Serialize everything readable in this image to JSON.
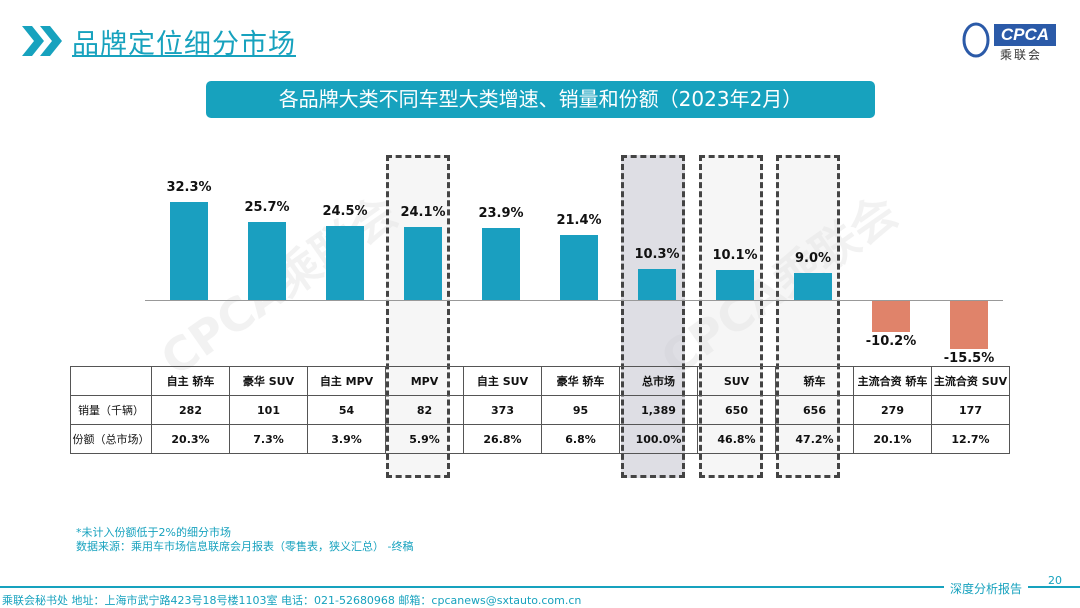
{
  "header": {
    "title": "品牌定位细分市场",
    "chart_title": "各品牌大类不同车型大类增速、销量和份额（2023年2月）"
  },
  "logo": {
    "text": "CPCA",
    "sub": "乘联会",
    "watermark": "CPCA乘联会"
  },
  "colors": {
    "accent": "#17A2BE",
    "bar_positive": "#1A9FC0",
    "bar_negative": "#E0836A"
  },
  "chart_data": {
    "type": "bar",
    "categories": [
      "自主 轿车",
      "豪华 SUV",
      "自主 MPV",
      "MPV",
      "自主 SUV",
      "豪华 轿车",
      "总市场",
      "SUV",
      "轿车",
      "主流合资 轿车",
      "主流合资 SUV"
    ],
    "values": [
      32.3,
      25.7,
      24.5,
      24.1,
      23.9,
      21.4,
      10.3,
      10.1,
      9.0,
      -10.2,
      -15.5
    ],
    "value_labels": [
      "32.3%",
      "25.7%",
      "24.5%",
      "24.1%",
      "23.9%",
      "21.4%",
      "10.3%",
      "10.1%",
      "9.0%",
      "-10.2%",
      "-15.5%"
    ],
    "highlighted": [
      "MPV",
      "总市场",
      "SUV",
      "轿车"
    ],
    "table": {
      "rows": [
        {
          "label": "销量（千辆）",
          "values": [
            "282",
            "101",
            "54",
            "82",
            "373",
            "95",
            "1,389",
            "650",
            "656",
            "279",
            "177"
          ]
        },
        {
          "label": "份额（总市场）",
          "values": [
            "20.3%",
            "7.3%",
            "3.9%",
            "5.9%",
            "26.8%",
            "6.8%",
            "100.0%",
            "46.8%",
            "47.2%",
            "20.1%",
            "12.7%"
          ]
        }
      ]
    }
  },
  "notes": [
    "*未计入份额低于2%的细分市场",
    "数据来源：乘用车市场信息联席会月报表（零售表，狭义汇总）  -终稿"
  ],
  "footer": {
    "text": "乘联会秘书处   地址：上海市武宁路423号18号楼1103室   电话：021-52680968   邮箱：cpcanews@sxtauto.com.cn",
    "tag": "深度分析报告",
    "page": "20"
  }
}
